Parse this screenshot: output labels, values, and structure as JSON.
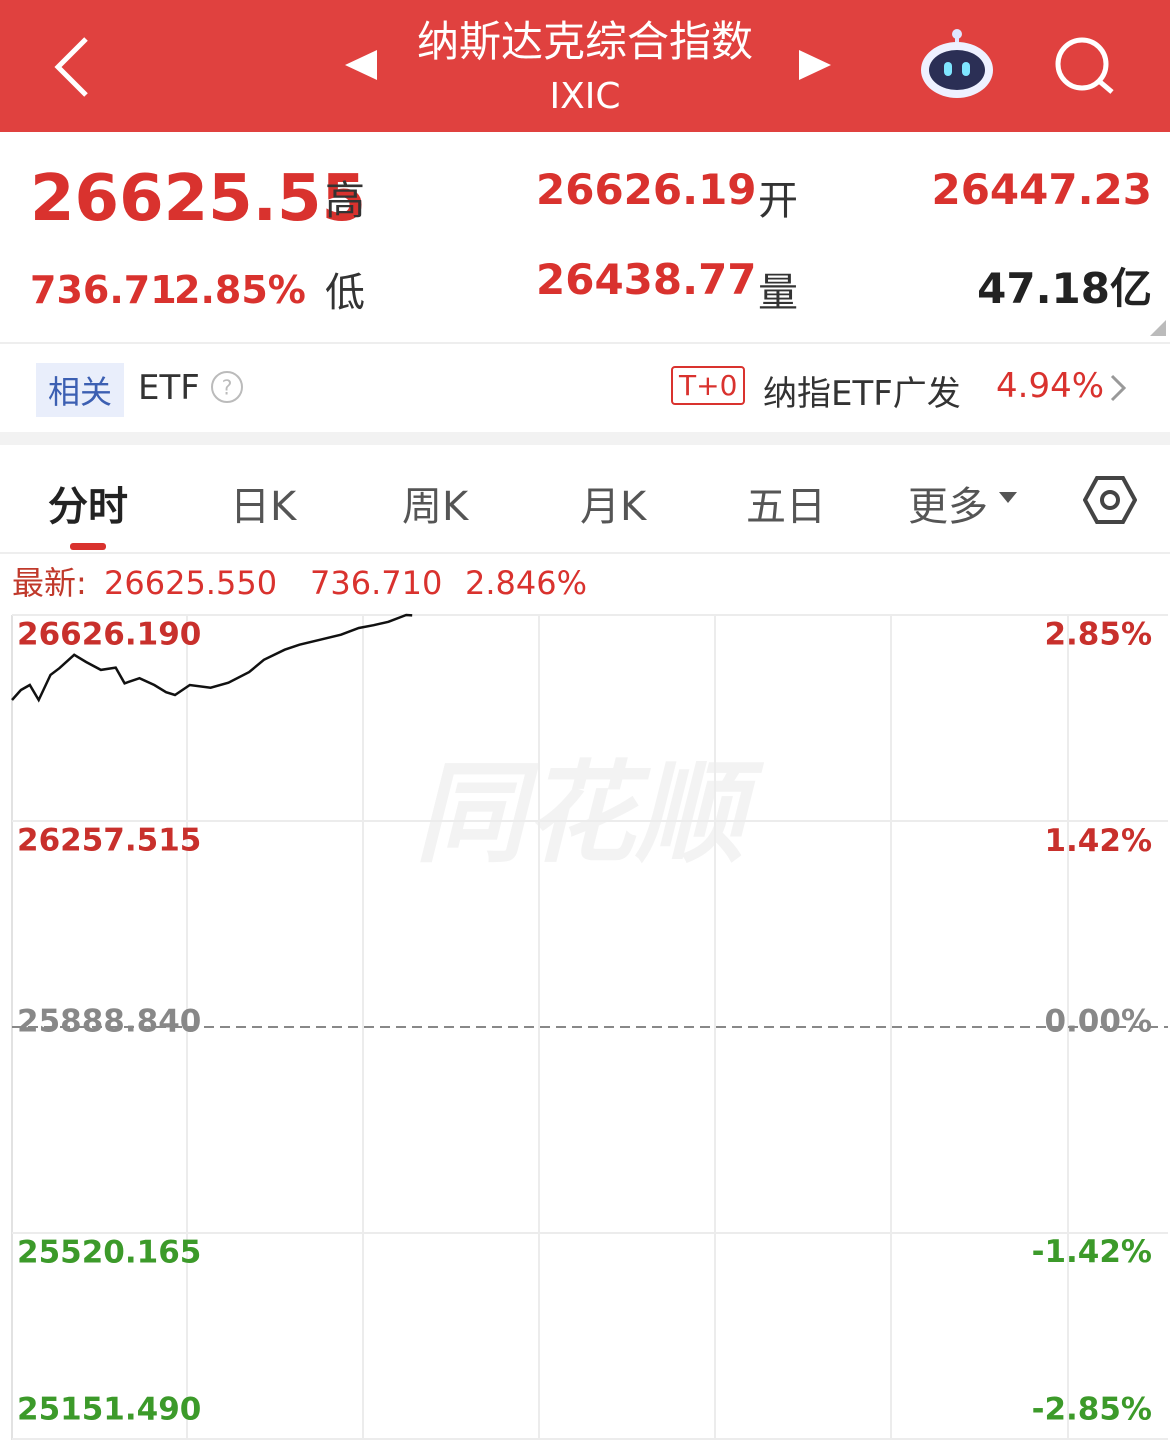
{
  "header": {
    "title": "纳斯达克综合指数",
    "subtitle": "IXIC"
  },
  "quote": {
    "price": "26625.55",
    "change": "736.71",
    "percent": "2.85%",
    "high_label": "高",
    "high": "26626.19",
    "open_label": "开",
    "open": "26447.23",
    "low_label": "低",
    "low": "26438.77",
    "volume_label": "量",
    "volume": "47.18亿"
  },
  "etf": {
    "tag": "相关",
    "label": "ETF",
    "badge": "T+0",
    "name": "纳指ETF广发",
    "percent": "4.94%"
  },
  "tabs": [
    "分时",
    "日K",
    "周K",
    "月K",
    "五日",
    "更多"
  ],
  "chart_data": {
    "type": "line",
    "latest": {
      "label": "最新:",
      "price": "26625.550",
      "change": "736.710",
      "percent": "2.846%"
    },
    "watermark": "同花顺",
    "color": "#111111",
    "x": [
      0,
      3,
      6,
      9,
      13,
      16,
      21,
      25,
      30,
      35,
      38,
      43,
      48,
      52,
      55,
      60,
      67,
      73,
      80,
      85,
      92,
      97,
      104,
      111,
      117,
      122,
      127,
      133,
      135
    ],
    "values": [
      26474,
      26492,
      26501,
      26474,
      26519,
      26531,
      26555,
      26542,
      26528,
      26532,
      26504,
      26513,
      26501,
      26488,
      26483,
      26501,
      26496,
      26505,
      26524,
      26546,
      26564,
      26573,
      26582,
      26591,
      26603,
      26608,
      26614,
      26626.19,
      26625.55
    ],
    "xlim": [
      0,
      390
    ],
    "ylim": [
      25151.49,
      26626.19
    ],
    "yticks": [
      {
        "value": 26626.19,
        "label": "26626.190"
      },
      {
        "value": 26257.515,
        "label": "26257.515"
      },
      {
        "value": 25888.84,
        "label": "25888.840"
      },
      {
        "value": 25520.165,
        "label": "25520.165"
      },
      {
        "value": 25151.49,
        "label": "25151.490"
      }
    ],
    "y2lim": [
      -2.85,
      2.85
    ],
    "y2ticks": [
      {
        "value": 2.85,
        "label": "2.85%"
      },
      {
        "value": 1.42,
        "label": "1.42%"
      },
      {
        "value": 0,
        "label": "0.00%"
      },
      {
        "value": -1.42,
        "label": "-1.42%"
      },
      {
        "value": -2.85,
        "label": "-2.85%"
      }
    ],
    "grid": true
  }
}
